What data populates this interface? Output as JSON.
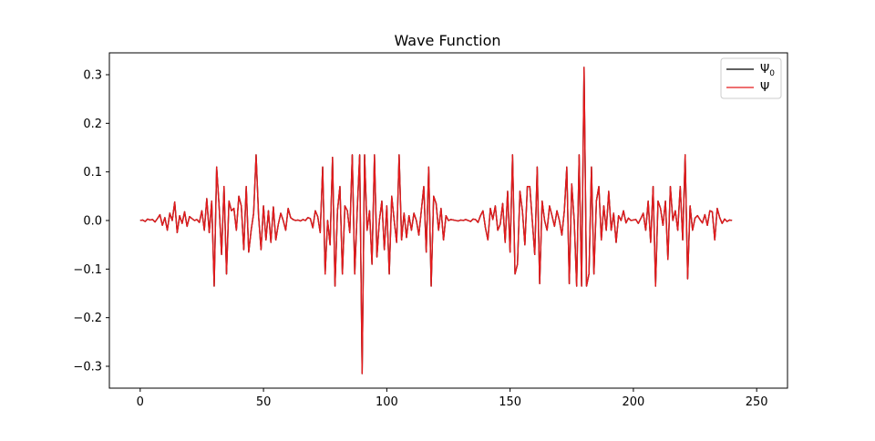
{
  "chart_data": {
    "type": "line",
    "title": "Wave Function",
    "xlabel": "",
    "ylabel": "",
    "xlim": [
      -12.5,
      262.5
    ],
    "ylim": [
      -0.345,
      0.345
    ],
    "x_ticks": [
      0,
      50,
      100,
      150,
      200,
      250
    ],
    "x_tick_labels": [
      "0",
      "50",
      "100",
      "150",
      "200",
      "250"
    ],
    "y_ticks": [
      -0.3,
      -0.2,
      -0.1,
      0.0,
      0.1,
      0.2,
      0.3
    ],
    "y_tick_labels": [
      "−0.3",
      "−0.2",
      "−0.1",
      "0.0",
      "0.1",
      "0.2",
      "0.3"
    ],
    "grid": false,
    "legend_position": "top-right",
    "legend": [
      {
        "label": "Ψ",
        "subscript": "0",
        "color": "#000000"
      },
      {
        "label": "Ψ",
        "subscript": "",
        "color": "#e41a1c"
      }
    ],
    "series": [
      {
        "name": "Ψ0",
        "color": "#000000",
        "x_start": 0,
        "x_step": 1,
        "values": [
          0.0,
          0.001,
          -0.002,
          0.003,
          0.001,
          0.002,
          -0.003,
          0.004,
          0.012,
          -0.01,
          0.006,
          -0.02,
          0.015,
          0.0,
          0.038,
          -0.025,
          0.01,
          -0.006,
          0.018,
          -0.012,
          0.008,
          0.004,
          0.0,
          0.002,
          -0.004,
          0.02,
          -0.02,
          0.045,
          -0.025,
          0.04,
          -0.135,
          0.11,
          0.03,
          -0.07,
          0.07,
          -0.11,
          0.04,
          0.02,
          0.025,
          -0.02,
          0.05,
          0.03,
          -0.06,
          0.07,
          -0.065,
          -0.02,
          0.015,
          0.135,
          0.01,
          -0.06,
          0.03,
          -0.04,
          0.02,
          -0.045,
          0.028,
          -0.04,
          -0.008,
          0.015,
          0.0,
          -0.02,
          0.025,
          0.006,
          0.002,
          0.0,
          0.001,
          -0.001,
          0.002,
          0.0,
          0.006,
          0.004,
          -0.015,
          0.02,
          0.008,
          -0.025,
          0.11,
          -0.11,
          0.0,
          -0.05,
          0.13,
          -0.135,
          0.02,
          0.07,
          -0.11,
          0.03,
          0.02,
          -0.025,
          0.135,
          -0.11,
          0.02,
          0.135,
          -0.315,
          0.135,
          -0.02,
          0.02,
          -0.09,
          0.135,
          -0.075,
          0.0,
          0.04,
          -0.06,
          0.03,
          -0.11,
          0.05,
          0.0,
          -0.045,
          0.135,
          -0.04,
          0.015,
          -0.035,
          0.01,
          -0.02,
          0.015,
          0.0,
          -0.03,
          0.02,
          0.07,
          -0.065,
          0.11,
          -0.135,
          0.05,
          0.035,
          -0.02,
          0.025,
          -0.04,
          0.01,
          0.0,
          0.002,
          0.001,
          0.0,
          -0.001,
          0.001,
          0.0,
          0.002,
          0.0,
          -0.002,
          0.003,
          0.002,
          -0.004,
          0.01,
          0.02,
          -0.015,
          -0.04,
          0.025,
          0.002,
          0.03,
          -0.02,
          -0.008,
          0.035,
          -0.045,
          0.06,
          -0.065,
          0.135,
          -0.11,
          -0.09,
          0.06,
          0.02,
          -0.05,
          0.07,
          0.07,
          0.0,
          -0.07,
          0.11,
          -0.13,
          0.04,
          0.0,
          -0.02,
          0.03,
          0.01,
          -0.012,
          0.02,
          0.0,
          -0.03,
          0.02,
          0.11,
          -0.13,
          0.075,
          0.0,
          -0.135,
          0.135,
          -0.135,
          0.315,
          -0.135,
          -0.11,
          0.11,
          -0.11,
          0.04,
          0.07,
          -0.04,
          0.03,
          -0.02,
          0.06,
          -0.02,
          0.015,
          -0.045,
          0.01,
          0.0,
          0.02,
          -0.005,
          0.005,
          0.0,
          0.001,
          0.002,
          -0.006,
          0.004,
          0.015,
          -0.02,
          0.04,
          -0.045,
          0.07,
          -0.135,
          0.04,
          0.025,
          -0.01,
          0.04,
          -0.08,
          0.07,
          0.0,
          0.02,
          -0.02,
          0.07,
          -0.04,
          0.135,
          -0.12,
          0.03,
          -0.02,
          0.005,
          0.01,
          0.002,
          -0.005,
          0.012,
          -0.01,
          0.02,
          0.018,
          -0.04,
          0.025,
          0.006,
          -0.006,
          0.003,
          -0.002,
          0.001,
          0.0
        ]
      },
      {
        "name": "Ψ",
        "color": "#e41a1c",
        "x_start": 0,
        "x_step": 1,
        "values": [
          0.0,
          0.001,
          -0.002,
          0.003,
          0.001,
          0.002,
          -0.003,
          0.004,
          0.012,
          -0.01,
          0.006,
          -0.02,
          0.015,
          0.0,
          0.038,
          -0.025,
          0.01,
          -0.006,
          0.018,
          -0.012,
          0.008,
          0.004,
          0.0,
          0.002,
          -0.004,
          0.02,
          -0.02,
          0.045,
          -0.025,
          0.04,
          -0.135,
          0.11,
          0.03,
          -0.07,
          0.07,
          -0.11,
          0.04,
          0.02,
          0.025,
          -0.02,
          0.05,
          0.03,
          -0.06,
          0.07,
          -0.065,
          -0.02,
          0.015,
          0.135,
          0.01,
          -0.06,
          0.03,
          -0.04,
          0.02,
          -0.045,
          0.028,
          -0.04,
          -0.008,
          0.015,
          0.0,
          -0.02,
          0.025,
          0.006,
          0.002,
          0.0,
          0.001,
          -0.001,
          0.002,
          0.0,
          0.006,
          0.004,
          -0.015,
          0.02,
          0.008,
          -0.025,
          0.11,
          -0.11,
          0.0,
          -0.05,
          0.13,
          -0.135,
          0.02,
          0.07,
          -0.11,
          0.03,
          0.02,
          -0.025,
          0.135,
          -0.11,
          0.02,
          0.135,
          -0.315,
          0.135,
          -0.02,
          0.02,
          -0.09,
          0.135,
          -0.075,
          0.0,
          0.04,
          -0.06,
          0.03,
          -0.11,
          0.05,
          0.0,
          -0.045,
          0.135,
          -0.04,
          0.015,
          -0.035,
          0.01,
          -0.02,
          0.015,
          0.0,
          -0.03,
          0.02,
          0.07,
          -0.065,
          0.11,
          -0.135,
          0.05,
          0.035,
          -0.02,
          0.025,
          -0.04,
          0.01,
          0.0,
          0.002,
          0.001,
          0.0,
          -0.001,
          0.001,
          0.0,
          0.002,
          0.0,
          -0.002,
          0.003,
          0.002,
          -0.004,
          0.01,
          0.02,
          -0.015,
          -0.04,
          0.025,
          0.002,
          0.03,
          -0.02,
          -0.008,
          0.035,
          -0.045,
          0.06,
          -0.065,
          0.135,
          -0.11,
          -0.09,
          0.06,
          0.02,
          -0.05,
          0.07,
          0.07,
          0.0,
          -0.07,
          0.11,
          -0.13,
          0.04,
          0.0,
          -0.02,
          0.03,
          0.01,
          -0.012,
          0.02,
          0.0,
          -0.03,
          0.02,
          0.11,
          -0.13,
          0.075,
          0.0,
          -0.135,
          0.135,
          -0.135,
          0.315,
          -0.135,
          -0.11,
          0.11,
          -0.11,
          0.04,
          0.07,
          -0.04,
          0.03,
          -0.02,
          0.06,
          -0.02,
          0.015,
          -0.045,
          0.01,
          0.0,
          0.02,
          -0.005,
          0.005,
          0.0,
          0.001,
          0.002,
          -0.006,
          0.004,
          0.015,
          -0.02,
          0.04,
          -0.045,
          0.07,
          -0.135,
          0.04,
          0.025,
          -0.01,
          0.04,
          -0.08,
          0.07,
          0.0,
          0.02,
          -0.02,
          0.07,
          -0.04,
          0.135,
          -0.12,
          0.03,
          -0.02,
          0.005,
          0.01,
          0.002,
          -0.005,
          0.012,
          -0.01,
          0.02,
          0.018,
          -0.04,
          0.025,
          0.006,
          -0.006,
          0.003,
          -0.002,
          0.001,
          0.0
        ]
      }
    ]
  }
}
